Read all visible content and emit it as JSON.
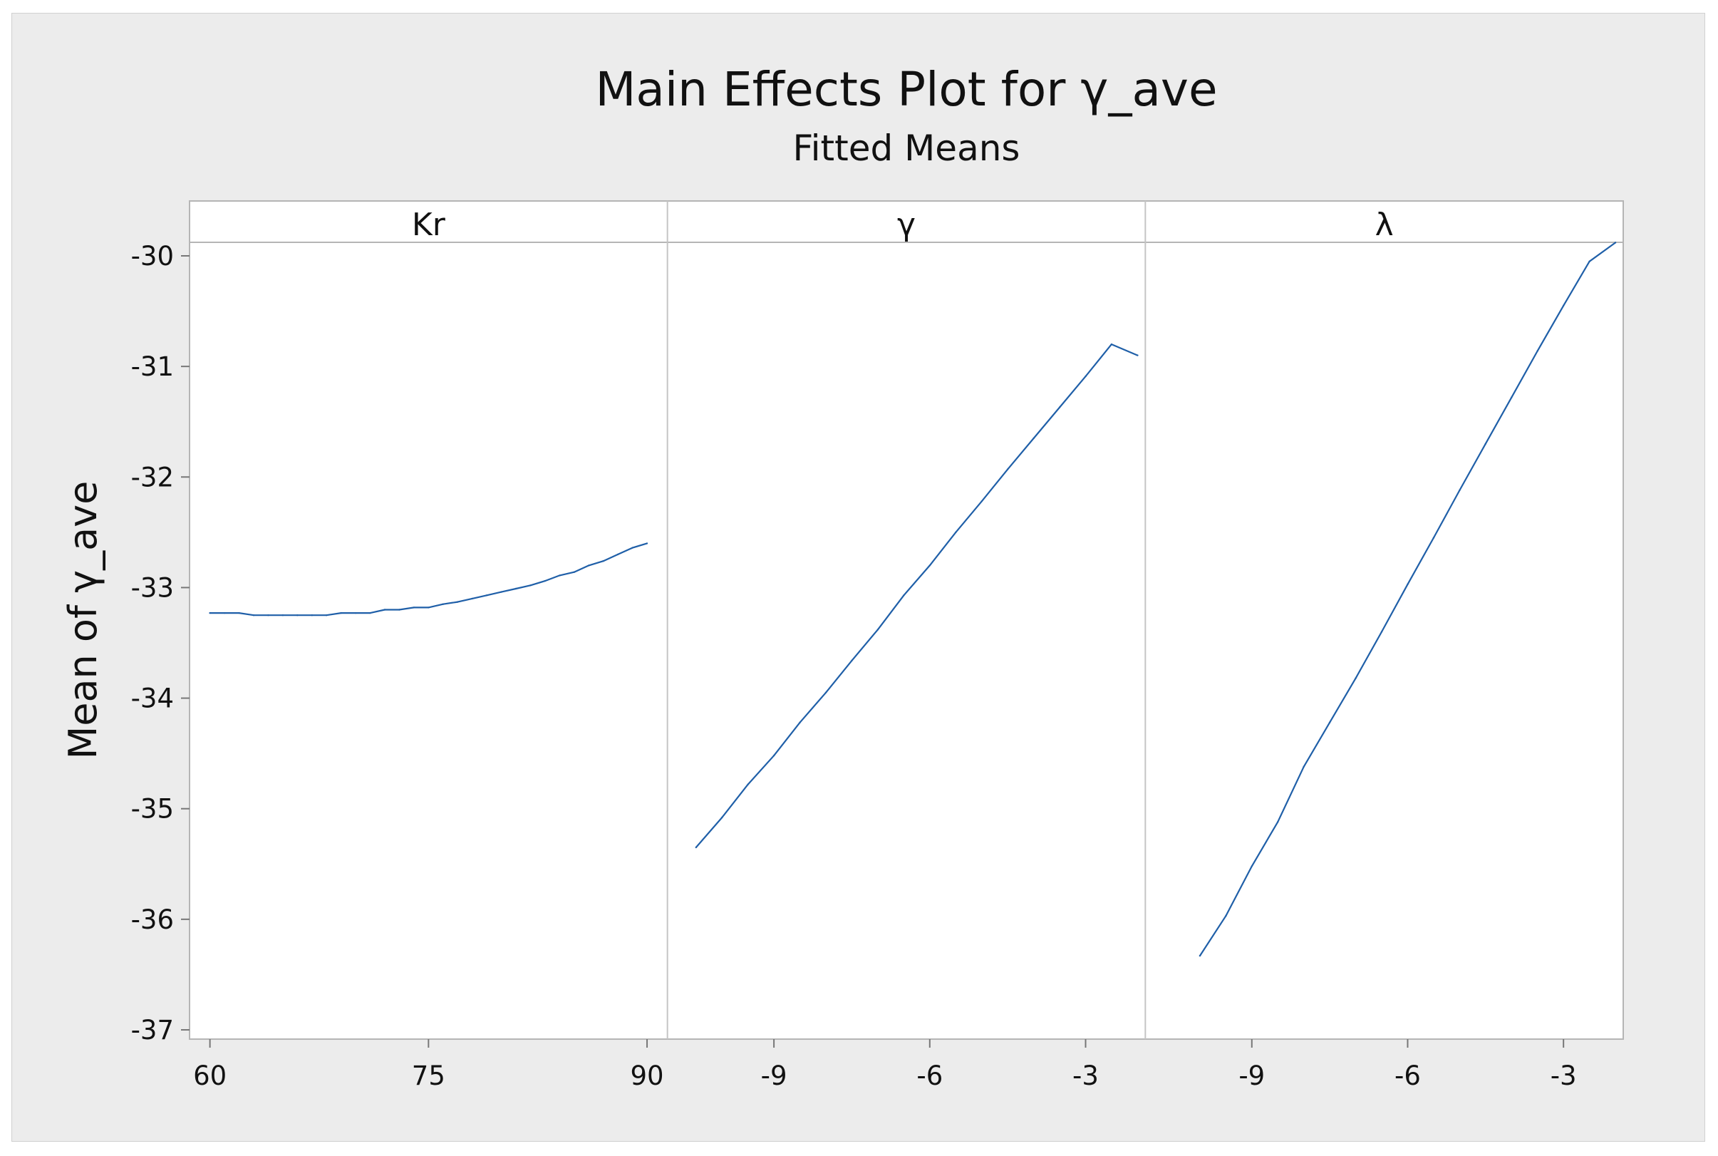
{
  "chart_data": {
    "type": "line",
    "title": "Main Effects Plot for γ_ave",
    "subtitle": "Fitted Means",
    "ylabel": "Mean of γ_ave",
    "ylim": [
      -37,
      -30
    ],
    "yticks": [
      -37,
      -36,
      -35,
      -34,
      -33,
      -32,
      -31,
      -30
    ],
    "yticks_labels": [
      "-37",
      "-36",
      "-35",
      "-34",
      "-33",
      "-32",
      "-31",
      "-30"
    ],
    "grid": false,
    "line_color": "#1f5fa8",
    "panels": [
      {
        "name": "Kr",
        "xlim": [
          58.6,
          91.4
        ],
        "xticks": [
          60,
          75,
          90
        ],
        "xticks_labels": [
          "60",
          "75",
          "90"
        ],
        "series": {
          "x": [
            60,
            61,
            62,
            63,
            64,
            65,
            66,
            67,
            68,
            69,
            70,
            71,
            72,
            73,
            74,
            75,
            76,
            77,
            78,
            79,
            80,
            81,
            82,
            83,
            84,
            85,
            86,
            87,
            88,
            89,
            90
          ],
          "y": [
            -33.23,
            -33.23,
            -33.23,
            -33.25,
            -33.25,
            -33.25,
            -33.25,
            -33.25,
            -33.25,
            -33.23,
            -33.23,
            -33.23,
            -33.2,
            -33.2,
            -33.18,
            -33.18,
            -33.15,
            -33.13,
            -33.1,
            -33.07,
            -33.04,
            -33.01,
            -32.98,
            -32.94,
            -32.89,
            -32.86,
            -32.8,
            -32.76,
            -32.7,
            -32.64,
            -32.6
          ]
        }
      },
      {
        "name": "γ",
        "xlim": [
          -11.05,
          -1.85
        ],
        "xticks": [
          -9,
          -6,
          -3
        ],
        "xticks_labels": [
          "-9",
          "-6",
          "-3"
        ],
        "series": {
          "x": [
            -10.5,
            -10.0,
            -9.5,
            -9.0,
            -8.5,
            -8.0,
            -7.5,
            -7.0,
            -6.5,
            -6.0,
            -5.5,
            -5.0,
            -4.5,
            -4.0,
            -3.5,
            -3.0,
            -2.5,
            -2.0
          ],
          "y": [
            -35.35,
            -35.08,
            -34.78,
            -34.52,
            -34.22,
            -33.95,
            -33.66,
            -33.38,
            -33.07,
            -32.8,
            -32.5,
            -32.22,
            -31.93,
            -31.65,
            -31.37,
            -31.09,
            -30.8,
            -30.9
          ]
        }
      },
      {
        "name": "λ",
        "xlim": [
          -11.05,
          -1.85
        ],
        "xticks": [
          -9,
          -6,
          -3
        ],
        "xticks_labels": [
          "-9",
          "-6",
          "-3"
        ],
        "series": {
          "x": [
            -10.0,
            -9.5,
            -9.0,
            -8.5,
            -8.0,
            -7.5,
            -7.0,
            -6.5,
            -6.0,
            -5.5,
            -5.0,
            -4.5,
            -4.0,
            -3.5,
            -3.0,
            -2.5,
            -2.0
          ],
          "y": [
            -36.33,
            -35.97,
            -35.52,
            -35.12,
            -34.62,
            -34.22,
            -33.82,
            -33.4,
            -32.97,
            -32.55,
            -32.12,
            -31.7,
            -31.28,
            -30.86,
            -30.45,
            -30.05,
            -29.88
          ]
        }
      }
    ]
  }
}
